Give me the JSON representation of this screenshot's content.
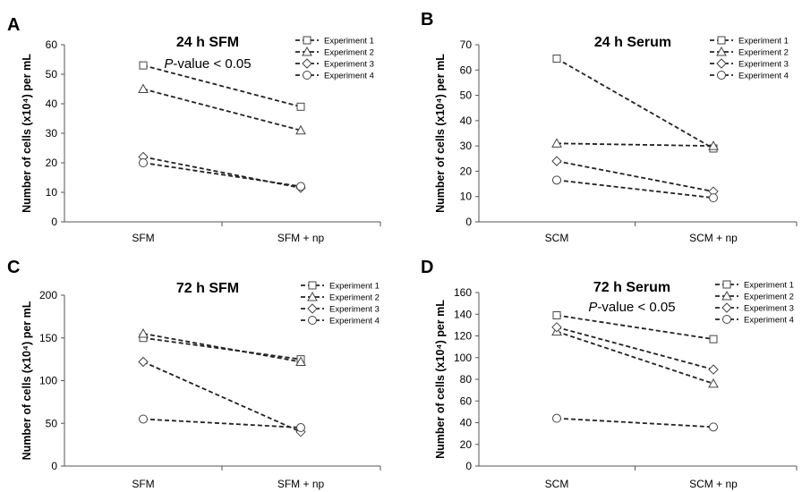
{
  "chart_data": [
    {
      "panel": "A",
      "type": "line",
      "title": "24 h SFM",
      "subtitle": "P-value < 0.05",
      "ylabel": "Number of cells (x10⁴) per mL",
      "xlabel": "",
      "categories": [
        "SFM",
        "SFM + np"
      ],
      "ylim": [
        0,
        60
      ],
      "yticks": [
        0,
        10,
        20,
        30,
        40,
        50,
        60
      ],
      "series": [
        {
          "name": "Experiment 1",
          "marker": "square",
          "values": [
            53,
            39
          ]
        },
        {
          "name": "Experiment 2",
          "marker": "triangle",
          "values": [
            45,
            31
          ]
        },
        {
          "name": "Experiment 3",
          "marker": "diamond",
          "values": [
            22,
            11.5
          ]
        },
        {
          "name": "Experiment 4",
          "marker": "circle",
          "values": [
            20,
            12
          ]
        }
      ],
      "legend_position": "top-right"
    },
    {
      "panel": "B",
      "type": "line",
      "title": "24 h Serum",
      "subtitle": "",
      "ylabel": "Number of cells (x10⁴) per mL",
      "xlabel": "",
      "categories": [
        "SCM",
        "SCM + np"
      ],
      "ylim": [
        0,
        70
      ],
      "yticks": [
        0,
        10,
        20,
        30,
        40,
        50,
        60,
        70
      ],
      "series": [
        {
          "name": "Experiment 1",
          "marker": "square",
          "values": [
            64.5,
            29
          ]
        },
        {
          "name": "Experiment 2",
          "marker": "triangle",
          "values": [
            31,
            30
          ]
        },
        {
          "name": "Experiment 3",
          "marker": "diamond",
          "values": [
            24,
            12
          ]
        },
        {
          "name": "Experiment 4",
          "marker": "circle",
          "values": [
            16.5,
            9.5
          ]
        }
      ],
      "legend_position": "top-right"
    },
    {
      "panel": "C",
      "type": "line",
      "title": "72 h SFM",
      "subtitle": "",
      "ylabel": "Number of cells (x10⁴) per mL",
      "xlabel": "",
      "categories": [
        "SFM",
        "SFM + np"
      ],
      "ylim": [
        0,
        200
      ],
      "yticks": [
        0,
        50,
        100,
        150,
        200
      ],
      "series": [
        {
          "name": "Experiment 1",
          "marker": "square",
          "values": [
            150,
            125
          ]
        },
        {
          "name": "Experiment 2",
          "marker": "triangle",
          "values": [
            155,
            122
          ]
        },
        {
          "name": "Experiment 3",
          "marker": "diamond",
          "values": [
            122,
            40
          ]
        },
        {
          "name": "Experiment 4",
          "marker": "circle",
          "values": [
            55,
            45
          ]
        }
      ],
      "legend_position": "top-right"
    },
    {
      "panel": "D",
      "type": "line",
      "title": "72 h Serum",
      "subtitle": "P-value < 0.05",
      "ylabel": "Number of cells (x10⁴) per mL",
      "xlabel": "",
      "categories": [
        "SCM",
        "SCM + np"
      ],
      "ylim": [
        0,
        160
      ],
      "yticks": [
        0,
        20,
        40,
        60,
        80,
        100,
        120,
        140,
        160
      ],
      "series": [
        {
          "name": "Experiment 1",
          "marker": "square",
          "values": [
            139,
            117
          ]
        },
        {
          "name": "Experiment 2",
          "marker": "triangle",
          "values": [
            124,
            76
          ]
        },
        {
          "name": "Experiment 3",
          "marker": "diamond",
          "values": [
            128,
            89
          ]
        },
        {
          "name": "Experiment 4",
          "marker": "circle",
          "values": [
            44,
            36
          ]
        }
      ],
      "legend_position": "top-right"
    }
  ]
}
